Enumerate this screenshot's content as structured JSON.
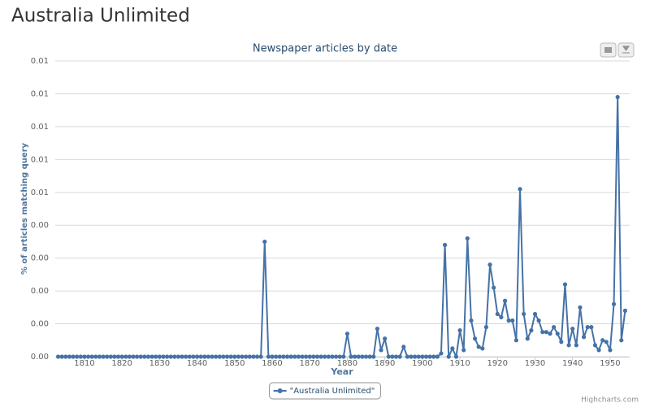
{
  "header": {
    "title": "Australia Unlimited"
  },
  "chart_data": {
    "type": "line",
    "title": "Newspaper articles by date",
    "xlabel": "Year",
    "ylabel": "% of articles matching query",
    "credits": "Highcharts.com",
    "x": [
      1803,
      1804,
      1805,
      1806,
      1807,
      1808,
      1809,
      1810,
      1811,
      1812,
      1813,
      1814,
      1815,
      1816,
      1817,
      1818,
      1819,
      1820,
      1821,
      1822,
      1823,
      1824,
      1825,
      1826,
      1827,
      1828,
      1829,
      1830,
      1831,
      1832,
      1833,
      1834,
      1835,
      1836,
      1837,
      1838,
      1839,
      1840,
      1841,
      1842,
      1843,
      1844,
      1845,
      1846,
      1847,
      1848,
      1849,
      1850,
      1851,
      1852,
      1853,
      1854,
      1855,
      1856,
      1857,
      1858,
      1859,
      1860,
      1861,
      1862,
      1863,
      1864,
      1865,
      1866,
      1867,
      1868,
      1869,
      1870,
      1871,
      1872,
      1873,
      1874,
      1875,
      1876,
      1877,
      1878,
      1879,
      1880,
      1881,
      1882,
      1883,
      1884,
      1885,
      1886,
      1887,
      1888,
      1889,
      1890,
      1891,
      1892,
      1893,
      1894,
      1895,
      1896,
      1897,
      1898,
      1899,
      1900,
      1901,
      1902,
      1903,
      1904,
      1905,
      1906,
      1907,
      1908,
      1909,
      1910,
      1911,
      1912,
      1913,
      1914,
      1915,
      1916,
      1917,
      1918,
      1919,
      1920,
      1921,
      1922,
      1923,
      1924,
      1925,
      1926,
      1927,
      1928,
      1929,
      1930,
      1931,
      1932,
      1933,
      1934,
      1935,
      1936,
      1937,
      1938,
      1939,
      1940,
      1941,
      1942,
      1943,
      1944,
      1945,
      1946,
      1947,
      1948,
      1949,
      1950,
      1951,
      1952,
      1953,
      1954
    ],
    "series": [
      {
        "name": "\"Australia Unlimited\"",
        "color": "#4572a7",
        "values": [
          0,
          0,
          0,
          0,
          0,
          0,
          0,
          0,
          0,
          0,
          0,
          0,
          0,
          0,
          0,
          0,
          0,
          0,
          0,
          0,
          0,
          0,
          0,
          0,
          0,
          0,
          0,
          0,
          0,
          0,
          0,
          0,
          0,
          0,
          0,
          0,
          0,
          0,
          0,
          0,
          0,
          0,
          0,
          0,
          0,
          0,
          0,
          0,
          0,
          0,
          0,
          0,
          0,
          0,
          0,
          0.0035,
          0,
          0,
          0,
          0,
          0,
          0,
          0,
          0,
          0,
          0,
          0,
          0,
          0,
          0,
          0,
          0,
          0,
          0,
          0,
          0,
          0,
          0.0007,
          0,
          0,
          0,
          0,
          0,
          0,
          0,
          0.00085,
          0.0002,
          0.00055,
          0,
          0,
          0,
          0,
          0.0003,
          0,
          0,
          0,
          0,
          0,
          0,
          0,
          0,
          0,
          0.0001,
          0.0034,
          0,
          0.00025,
          0,
          0.0008,
          0.0002,
          0.0036,
          0.0011,
          0.00055,
          0.0003,
          0.00025,
          0.0009,
          0.0028,
          0.0021,
          0.0013,
          0.0012,
          0.0017,
          0.0011,
          0.0011,
          0.0005,
          0.0051,
          0.0013,
          0.00055,
          0.0008,
          0.0013,
          0.0011,
          0.00075,
          0.00075,
          0.0007,
          0.0009,
          0.0007,
          0.00045,
          0.0022,
          0.00035,
          0.00085,
          0.00035,
          0.0015,
          0.0006,
          0.0009,
          0.0009,
          0.00035,
          0.0002,
          0.0005,
          0.00045,
          0.0002,
          0.0016,
          0.0079,
          0.0005,
          0.0014
        ]
      }
    ],
    "xlim": [
      1803,
      1954
    ],
    "xticks": [
      1810,
      1820,
      1830,
      1840,
      1850,
      1860,
      1870,
      1880,
      1890,
      1900,
      1910,
      1920,
      1930,
      1940,
      1950
    ],
    "ylim": [
      0,
      0.009
    ],
    "yticks": [
      {
        "value": 0,
        "label": "0.00"
      },
      {
        "value": 0.001,
        "label": "0.00"
      },
      {
        "value": 0.002,
        "label": "0.00"
      },
      {
        "value": 0.003,
        "label": "0.00"
      },
      {
        "value": 0.004,
        "label": "0.00"
      },
      {
        "value": 0.005,
        "label": "0.01"
      },
      {
        "value": 0.006,
        "label": "0.01"
      },
      {
        "value": 0.007,
        "label": "0.01"
      },
      {
        "value": 0.008,
        "label": "0.01"
      },
      {
        "value": 0.009,
        "label": "0.01"
      }
    ],
    "grid": true,
    "legend": "bottom"
  }
}
